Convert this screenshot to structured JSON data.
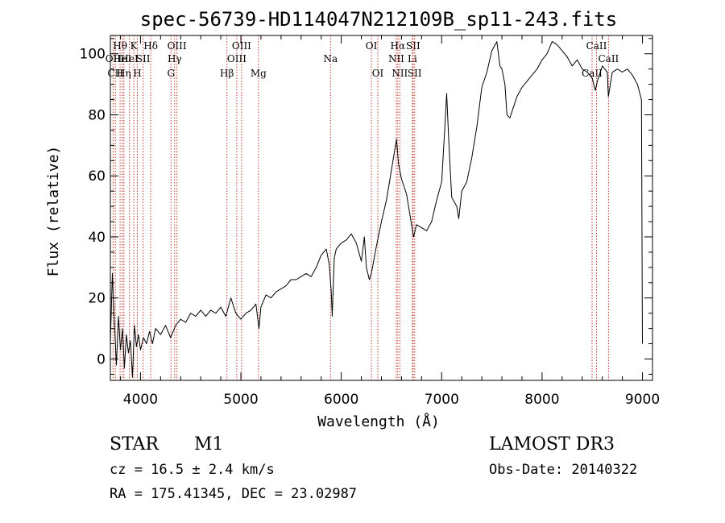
{
  "chart_data": {
    "type": "line",
    "title": "spec-56739-HD114047N212109B_sp11-243.fits",
    "xlabel": "Wavelength (Å)",
    "ylabel": "Flux (relative)",
    "xlim": [
      3700,
      9100
    ],
    "ylim": [
      -7,
      106
    ],
    "xticks": [
      4000,
      5000,
      6000,
      7000,
      8000,
      9000
    ],
    "yticks": [
      0,
      20,
      40,
      60,
      80,
      100
    ],
    "series": [
      {
        "name": "spectrum",
        "points": [
          [
            3700,
            5
          ],
          [
            3720,
            28
          ],
          [
            3740,
            12
          ],
          [
            3760,
            -2
          ],
          [
            3780,
            14
          ],
          [
            3800,
            3
          ],
          [
            3820,
            10
          ],
          [
            3840,
            -3
          ],
          [
            3860,
            8
          ],
          [
            3880,
            2
          ],
          [
            3900,
            6
          ],
          [
            3920,
            -6
          ],
          [
            3940,
            11
          ],
          [
            3960,
            4
          ],
          [
            3980,
            8
          ],
          [
            4000,
            3
          ],
          [
            4030,
            7
          ],
          [
            4060,
            5
          ],
          [
            4090,
            9
          ],
          [
            4120,
            5
          ],
          [
            4150,
            10
          ],
          [
            4200,
            8
          ],
          [
            4250,
            11
          ],
          [
            4300,
            7
          ],
          [
            4350,
            11
          ],
          [
            4400,
            13
          ],
          [
            4450,
            12
          ],
          [
            4500,
            15
          ],
          [
            4550,
            14
          ],
          [
            4600,
            16
          ],
          [
            4650,
            14
          ],
          [
            4700,
            16
          ],
          [
            4750,
            15
          ],
          [
            4800,
            17
          ],
          [
            4850,
            14
          ],
          [
            4900,
            20
          ],
          [
            4950,
            15
          ],
          [
            5000,
            13
          ],
          [
            5050,
            15
          ],
          [
            5100,
            16
          ],
          [
            5150,
            18
          ],
          [
            5180,
            10
          ],
          [
            5200,
            17
          ],
          [
            5250,
            21
          ],
          [
            5300,
            20
          ],
          [
            5350,
            22
          ],
          [
            5400,
            23
          ],
          [
            5450,
            24
          ],
          [
            5500,
            26
          ],
          [
            5550,
            26
          ],
          [
            5600,
            27
          ],
          [
            5650,
            28
          ],
          [
            5700,
            27
          ],
          [
            5750,
            30
          ],
          [
            5800,
            34
          ],
          [
            5850,
            36
          ],
          [
            5880,
            31
          ],
          [
            5900,
            22
          ],
          [
            5910,
            14
          ],
          [
            5930,
            33
          ],
          [
            5950,
            36
          ],
          [
            6000,
            38
          ],
          [
            6050,
            39
          ],
          [
            6100,
            41
          ],
          [
            6150,
            38
          ],
          [
            6200,
            32
          ],
          [
            6230,
            40
          ],
          [
            6250,
            30
          ],
          [
            6280,
            26
          ],
          [
            6300,
            28
          ],
          [
            6350,
            37
          ],
          [
            6400,
            45
          ],
          [
            6450,
            52
          ],
          [
            6500,
            62
          ],
          [
            6550,
            72
          ],
          [
            6570,
            64
          ],
          [
            6600,
            59
          ],
          [
            6650,
            54
          ],
          [
            6700,
            44
          ],
          [
            6720,
            40
          ],
          [
            6750,
            44
          ],
          [
            6800,
            43
          ],
          [
            6850,
            42
          ],
          [
            6900,
            45
          ],
          [
            6950,
            52
          ],
          [
            7000,
            58
          ],
          [
            7030,
            75
          ],
          [
            7050,
            87
          ],
          [
            7070,
            72
          ],
          [
            7100,
            53
          ],
          [
            7150,
            50
          ],
          [
            7170,
            46
          ],
          [
            7200,
            55
          ],
          [
            7250,
            58
          ],
          [
            7300,
            66
          ],
          [
            7350,
            76
          ],
          [
            7400,
            89
          ],
          [
            7450,
            94
          ],
          [
            7500,
            101
          ],
          [
            7550,
            104
          ],
          [
            7580,
            96
          ],
          [
            7600,
            95
          ],
          [
            7630,
            90
          ],
          [
            7650,
            80
          ],
          [
            7680,
            79
          ],
          [
            7700,
            81
          ],
          [
            7750,
            86
          ],
          [
            7800,
            89
          ],
          [
            7850,
            91
          ],
          [
            7900,
            93
          ],
          [
            7950,
            95
          ],
          [
            8000,
            98
          ],
          [
            8050,
            100
          ],
          [
            8100,
            104
          ],
          [
            8150,
            103
          ],
          [
            8200,
            101
          ],
          [
            8250,
            99
          ],
          [
            8300,
            96
          ],
          [
            8350,
            98
          ],
          [
            8400,
            95
          ],
          [
            8450,
            94
          ],
          [
            8500,
            92
          ],
          [
            8530,
            88
          ],
          [
            8550,
            91
          ],
          [
            8600,
            96
          ],
          [
            8650,
            94
          ],
          [
            8660,
            86
          ],
          [
            8700,
            94
          ],
          [
            8750,
            95
          ],
          [
            8800,
            94
          ],
          [
            8850,
            95
          ],
          [
            8900,
            93
          ],
          [
            8950,
            90
          ],
          [
            8990,
            85
          ],
          [
            9000,
            5
          ]
        ]
      }
    ],
    "lines": [
      {
        "w": 3727,
        "label": "OII",
        "row": 2
      },
      {
        "w": 3750,
        "label": "CH",
        "row": 3
      },
      {
        "w": 3797,
        "label": "Hθ",
        "row": 1
      },
      {
        "w": 3820,
        "label": "HeI",
        "row": 2
      },
      {
        "w": 3835,
        "label": "Hη",
        "row": 3
      },
      {
        "w": 3889,
        "label": "HeI",
        "row": 2
      },
      {
        "w": 3934,
        "label": "K",
        "row": 1
      },
      {
        "w": 3969,
        "label": "H",
        "row": 3
      },
      {
        "w": 4026,
        "label": "SII",
        "row": 2
      },
      {
        "w": 4102,
        "label": "Hδ",
        "row": 1
      },
      {
        "w": 4304,
        "label": "G",
        "row": 3
      },
      {
        "w": 4340,
        "label": "Hγ",
        "row": 2
      },
      {
        "w": 4363,
        "label": "OIII",
        "row": 1
      },
      {
        "w": 4861,
        "label": "Hβ",
        "row": 3
      },
      {
        "w": 4959,
        "label": "OIII",
        "row": 2
      },
      {
        "w": 5007,
        "label": "OIII",
        "row": 1
      },
      {
        "w": 5175,
        "label": "Mg",
        "row": 3
      },
      {
        "w": 5893,
        "label": "Na",
        "row": 2
      },
      {
        "w": 6300,
        "label": "OI",
        "row": 1
      },
      {
        "w": 6364,
        "label": "OI",
        "row": 3
      },
      {
        "w": 6548,
        "label": "NII",
        "row": 2
      },
      {
        "w": 6563,
        "label": "Hα",
        "row": 1
      },
      {
        "w": 6583,
        "label": "NII",
        "row": 3
      },
      {
        "w": 6708,
        "label": "Li",
        "row": 2
      },
      {
        "w": 6716,
        "label": "SII",
        "row": 1
      },
      {
        "w": 6731,
        "label": "SII",
        "row": 3
      },
      {
        "w": 8498,
        "label": "CaII",
        "row": 3
      },
      {
        "w": 8542,
        "label": "CaII",
        "row": 1
      },
      {
        "w": 8662,
        "label": "CaII",
        "row": 2
      }
    ]
  },
  "info": {
    "class": "STAR",
    "subclass": "M1",
    "survey": "LAMOST DR3",
    "cz": "cz = 16.5 ± 2.4 km/s",
    "obs_date": "Obs-Date: 20140322",
    "radec": "RA = 175.41345, DEC =  23.02987"
  },
  "colors": {
    "line_marker": "#c0392b",
    "spectrum": "#000000"
  }
}
